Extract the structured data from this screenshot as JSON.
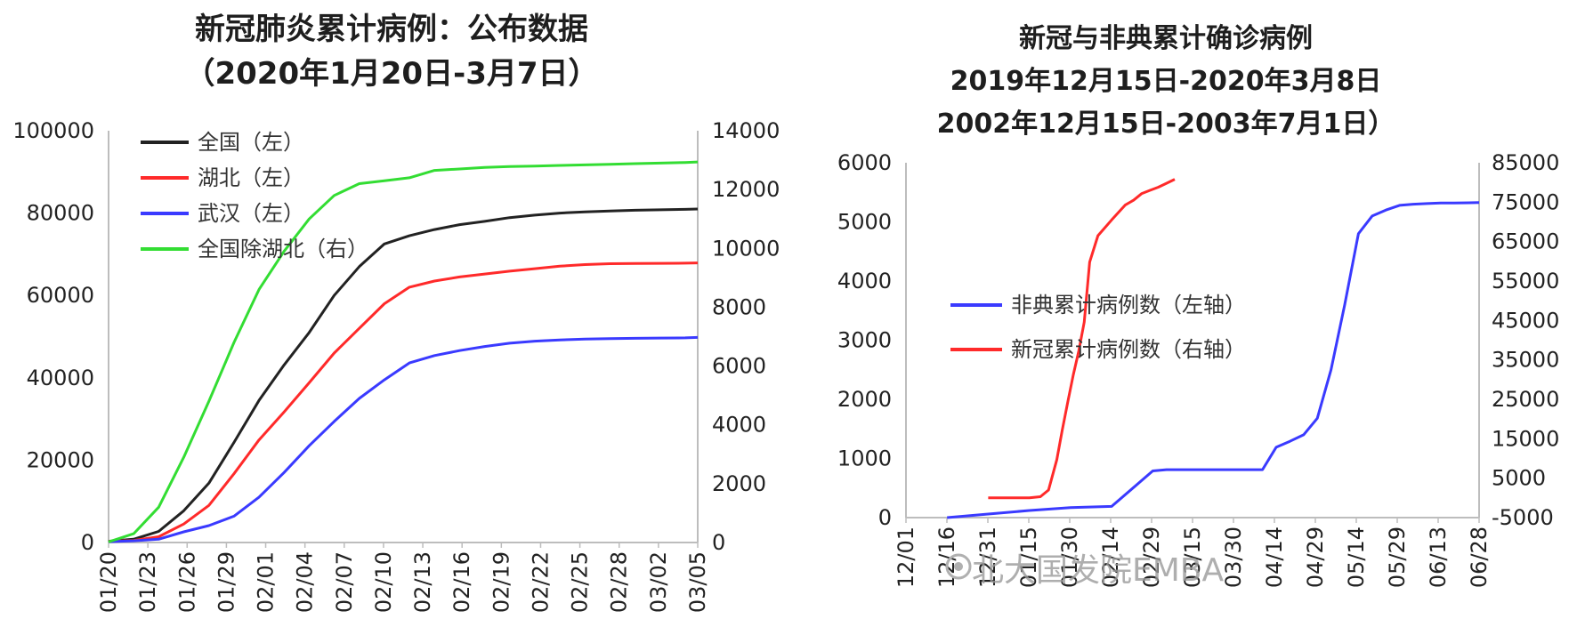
{
  "charts": [
    {
      "title_lines": [
        "新冠肺炎累计病例：公布数据",
        "（2020年1月20日-3月7日）"
      ]
    },
    {
      "title_lines": [
        "新冠与非典累计确诊病例",
        "2019年12月15日-2020年3月8日",
        "2002年12月15日-2003年7月1日）"
      ]
    }
  ],
  "watermark": "北大国发院EMBA",
  "chart_data": [
    {
      "type": "line",
      "title": "新冠肺炎累计病例：公布数据（2020年1月20日-3月7日）",
      "x_tick_labels": [
        "01/20",
        "01/23",
        "01/26",
        "01/29",
        "02/01",
        "02/04",
        "02/07",
        "02/10",
        "02/13",
        "02/16",
        "02/19",
        "02/22",
        "02/25",
        "02/28",
        "03/02",
        "03/05"
      ],
      "x_range": [
        0,
        47
      ],
      "y_left": {
        "range": [
          0,
          100000
        ],
        "ticks": [
          0,
          20000,
          40000,
          60000,
          80000,
          100000
        ]
      },
      "y_right": {
        "range": [
          0,
          14000
        ],
        "ticks": [
          0,
          2000,
          4000,
          6000,
          8000,
          10000,
          12000,
          14000
        ]
      },
      "grid": false,
      "legend": "top-left",
      "series": [
        {
          "name": "全国（左）",
          "axis": "left",
          "color": "#222222",
          "x": [
            0,
            2,
            4,
            6,
            8,
            10,
            12,
            14,
            16,
            18,
            20,
            22,
            24,
            26,
            28,
            30,
            32,
            34,
            36,
            38,
            40,
            42,
            44,
            46,
            47
          ],
          "y": [
            300,
            800,
            2700,
            7700,
            14400,
            24300,
            34500,
            43100,
            51000,
            60000,
            67000,
            72500,
            74500,
            76000,
            77200,
            78000,
            78900,
            79500,
            80000,
            80300,
            80500,
            80700,
            80800,
            80900,
            81000
          ]
        },
        {
          "name": "湖北（左）",
          "axis": "left",
          "color": "#ff2a2a",
          "x": [
            0,
            2,
            4,
            6,
            8,
            10,
            12,
            14,
            16,
            18,
            20,
            22,
            24,
            26,
            28,
            30,
            32,
            34,
            36,
            38,
            40,
            42,
            44,
            46,
            47
          ],
          "y": [
            270,
            500,
            1400,
            4500,
            9000,
            16700,
            24900,
            31700,
            38800,
            46000,
            52000,
            58000,
            62000,
            63500,
            64500,
            65200,
            65900,
            66500,
            67100,
            67500,
            67700,
            67750,
            67800,
            67850,
            67900
          ]
        },
        {
          "name": "武汉（左）",
          "axis": "left",
          "color": "#3a3aff",
          "x": [
            0,
            2,
            4,
            6,
            8,
            10,
            12,
            14,
            16,
            18,
            20,
            22,
            24,
            26,
            28,
            30,
            32,
            34,
            36,
            38,
            40,
            42,
            44,
            46,
            47
          ],
          "y": [
            200,
            400,
            800,
            2600,
            4100,
            6400,
            11000,
            17000,
            23500,
            29400,
            35000,
            39500,
            43600,
            45400,
            46600,
            47600,
            48400,
            48900,
            49200,
            49400,
            49500,
            49600,
            49650,
            49700,
            49800
          ]
        },
        {
          "name": "全国除湖北（右）",
          "axis": "right",
          "color": "#33dd33",
          "x": [
            0,
            2,
            4,
            6,
            8,
            10,
            12,
            14,
            16,
            18,
            20,
            22,
            24,
            26,
            28,
            30,
            32,
            34,
            36,
            38,
            40,
            42,
            44,
            46,
            47
          ],
          "y": [
            20,
            300,
            1200,
            2900,
            4800,
            6800,
            8600,
            9900,
            11000,
            11800,
            12200,
            12300,
            12400,
            12650,
            12700,
            12750,
            12780,
            12800,
            12820,
            12840,
            12860,
            12880,
            12900,
            12920,
            12940
          ]
        }
      ]
    },
    {
      "type": "line",
      "title": "新冠与非典累计确诊病例 2019年12月15日-2020年3月8日 2002年12月15日-2003年7月1日）",
      "x_tick_labels": [
        "12/01",
        "12/16",
        "12/31",
        "01/15",
        "01/30",
        "02/14",
        "02/29",
        "03/15",
        "03/30",
        "04/14",
        "04/29",
        "05/14",
        "05/29",
        "06/13",
        "06/28"
      ],
      "x_range": [
        0,
        209
      ],
      "y_left": {
        "range": [
          0,
          6000
        ],
        "ticks": [
          0,
          1000,
          2000,
          3000,
          4000,
          5000,
          6000
        ]
      },
      "y_right": {
        "range": [
          -5000,
          85000
        ],
        "ticks": [
          -5000,
          5000,
          15000,
          25000,
          35000,
          45000,
          55000,
          65000,
          75000,
          85000
        ]
      },
      "grid": false,
      "legend": "center-left",
      "series": [
        {
          "name": "非典累计病例数（左轴）",
          "axis": "left",
          "color": "#3a3aff",
          "x": [
            15,
            30,
            45,
            60,
            75,
            90,
            95,
            105,
            120,
            130,
            135,
            140,
            145,
            150,
            155,
            160,
            165,
            170,
            175,
            180,
            185,
            190,
            195,
            200,
            209
          ],
          "y": [
            0,
            60,
            120,
            170,
            190,
            790,
            810,
            810,
            810,
            810,
            1190,
            1290,
            1400,
            1680,
            2500,
            3600,
            4800,
            5100,
            5200,
            5280,
            5300,
            5310,
            5320,
            5320,
            5327
          ]
        },
        {
          "name": "新冠累计病例数（右轴）",
          "axis": "right",
          "color": "#ff2a2a",
          "x": [
            30,
            35,
            40,
            45,
            49,
            52,
            55,
            57,
            59,
            61,
            63,
            65,
            67,
            70,
            75,
            80,
            83,
            86,
            89,
            92,
            95,
            98
          ],
          "y": [
            41,
            41,
            41,
            41,
            300,
            2000,
            9700,
            17200,
            24300,
            31200,
            37200,
            44600,
            59800,
            66500,
            70500,
            74300,
            75500,
            77200,
            78000,
            78800,
            79800,
            80800
          ]
        }
      ]
    }
  ]
}
